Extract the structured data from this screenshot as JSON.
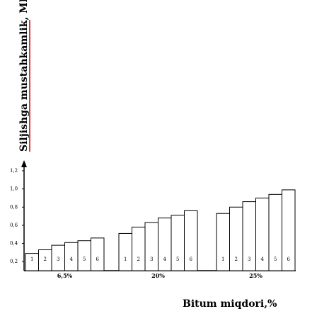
{
  "chart_data": {
    "type": "bar",
    "ylabel": "Siljishga mustahkamlik,  MPa",
    "xlabel": "Bitum miqdori,%",
    "yticks": [
      "0,2",
      "0,4",
      "0,6",
      "0,8",
      "1,0",
      "1,2"
    ],
    "ytick_values": [
      0.2,
      0.4,
      0.6,
      0.8,
      1.0,
      1.2
    ],
    "ylim": [
      0.1,
      1.3
    ],
    "grid": false,
    "legend": "none",
    "groups": [
      {
        "label": "6,5%",
        "bar_labels": [
          "1",
          "2",
          "3",
          "4",
          "5",
          "6"
        ],
        "values": [
          0.29,
          0.33,
          0.38,
          0.41,
          0.43,
          0.46
        ]
      },
      {
        "label": "20%",
        "bar_labels": [
          "1",
          "2",
          "3",
          "4",
          "5",
          "6"
        ],
        "values": [
          0.51,
          0.58,
          0.63,
          0.68,
          0.71,
          0.76
        ]
      },
      {
        "label": "25%",
        "bar_labels": [
          "1",
          "2",
          "3",
          "4",
          "5",
          "6"
        ],
        "values": [
          0.73,
          0.8,
          0.86,
          0.9,
          0.94,
          0.99
        ]
      }
    ],
    "colors": {
      "bar_fill": "#ffffff",
      "bar_stroke": "#000000",
      "axis": "#000000",
      "label_underline": "#cc0000"
    }
  }
}
